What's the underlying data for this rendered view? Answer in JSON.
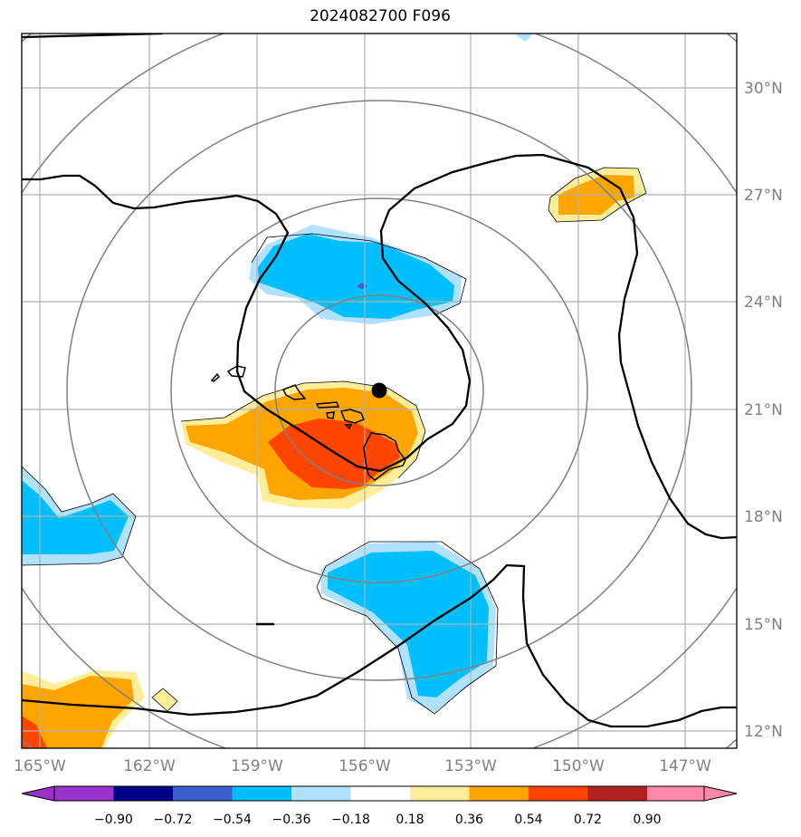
{
  "title": "2024082700 F096",
  "lon_ticks": [
    "165°W",
    "162°W",
    "159°W",
    "156°W",
    "153°W",
    "150°W",
    "147°W"
  ],
  "lat_ticks": [
    "30°N",
    "27°N",
    "24°N",
    "21°N",
    "18°N",
    "15°N",
    "12°N"
  ],
  "colorbar": {
    "ticks": [
      "−0.90",
      "−0.72",
      "−0.54",
      "−0.36",
      "−0.18",
      "0.18",
      "0.36",
      "0.54",
      "0.72",
      "0.90"
    ],
    "colors": [
      "#9933cc",
      "#00008b",
      "#3a5fcd",
      "#00bfff",
      "#b0e2ff",
      "#ffffff",
      "#ffee99",
      "#ffa500",
      "#ff4500",
      "#b22222",
      "#ff88aa"
    ]
  },
  "map": {
    "extent": {
      "lon": [
        -165,
        -145.5
      ],
      "lat": [
        11.5,
        31.5
      ]
    },
    "center": {
      "lon": -155.4,
      "lat": 21.5
    },
    "colors": {
      "land": "#000000",
      "gridlines": "#b0b0b0",
      "range_rings": "#808080",
      "marker": "#000000"
    }
  }
}
